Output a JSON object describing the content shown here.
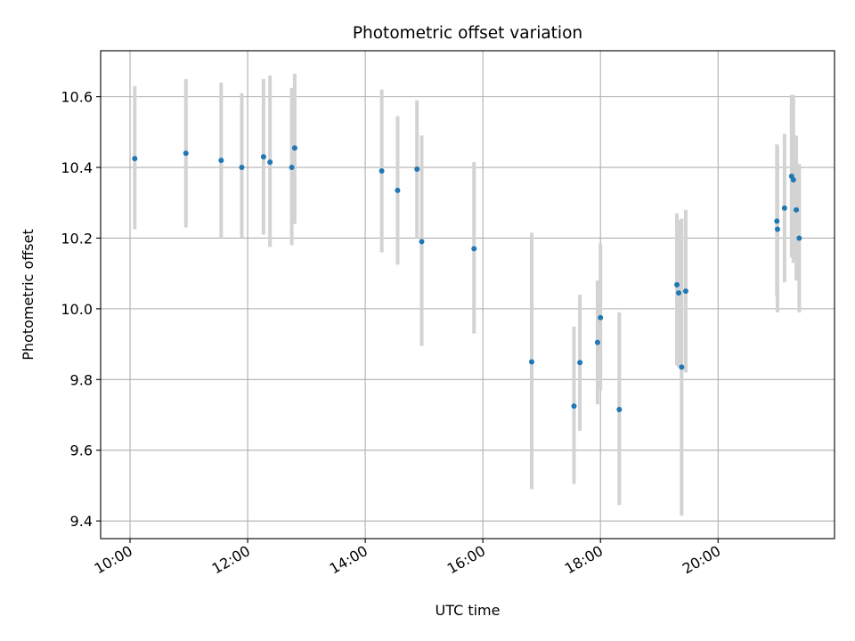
{
  "chart_data": {
    "type": "scatter",
    "title": "Photometric offset variation",
    "xlabel": "UTC time",
    "ylabel": "Photometric offset",
    "x_unit": "hours UTC",
    "xlim": [
      9.5,
      21.98
    ],
    "ylim": [
      9.35,
      10.73
    ],
    "x_ticks": [
      {
        "value": 10,
        "label": "10:00"
      },
      {
        "value": 12,
        "label": "12:00"
      },
      {
        "value": 14,
        "label": "14:00"
      },
      {
        "value": 16,
        "label": "16:00"
      },
      {
        "value": 18,
        "label": "18:00"
      },
      {
        "value": 20,
        "label": "20:00"
      }
    ],
    "y_ticks": [
      {
        "value": 9.4,
        "label": "9.4"
      },
      {
        "value": 9.6,
        "label": "9.6"
      },
      {
        "value": 9.8,
        "label": "9.8"
      },
      {
        "value": 10.0,
        "label": "10.0"
      },
      {
        "value": 10.2,
        "label": "10.2"
      },
      {
        "value": 10.4,
        "label": "10.4"
      },
      {
        "value": 10.6,
        "label": "10.6"
      }
    ],
    "grid": true,
    "point_color": "#1f77b4",
    "error_bar_color": "#d3d3d3",
    "points": [
      {
        "x": 10.08,
        "y": 10.425,
        "low": 10.225,
        "high": 10.63
      },
      {
        "x": 10.95,
        "y": 10.44,
        "low": 10.23,
        "high": 10.65
      },
      {
        "x": 11.55,
        "y": 10.42,
        "low": 10.2,
        "high": 10.64
      },
      {
        "x": 11.9,
        "y": 10.4,
        "low": 10.2,
        "high": 10.61
      },
      {
        "x": 12.27,
        "y": 10.43,
        "low": 10.21,
        "high": 10.65
      },
      {
        "x": 12.38,
        "y": 10.415,
        "low": 10.175,
        "high": 10.66
      },
      {
        "x": 12.75,
        "y": 10.4,
        "low": 10.18,
        "high": 10.625
      },
      {
        "x": 12.8,
        "y": 10.455,
        "low": 10.24,
        "high": 10.665
      },
      {
        "x": 14.28,
        "y": 10.39,
        "low": 10.16,
        "high": 10.62
      },
      {
        "x": 14.55,
        "y": 10.335,
        "low": 10.125,
        "high": 10.545
      },
      {
        "x": 14.88,
        "y": 10.395,
        "low": 10.2,
        "high": 10.59
      },
      {
        "x": 14.96,
        "y": 10.19,
        "low": 9.895,
        "high": 10.49
      },
      {
        "x": 15.85,
        "y": 10.17,
        "low": 9.93,
        "high": 10.415
      },
      {
        "x": 16.83,
        "y": 9.85,
        "low": 9.49,
        "high": 10.215
      },
      {
        "x": 17.55,
        "y": 9.725,
        "low": 9.505,
        "high": 9.95
      },
      {
        "x": 17.65,
        "y": 9.848,
        "low": 9.655,
        "high": 10.04
      },
      {
        "x": 17.95,
        "y": 9.905,
        "low": 9.73,
        "high": 10.08
      },
      {
        "x": 18.0,
        "y": 9.975,
        "low": 9.77,
        "high": 10.185
      },
      {
        "x": 18.32,
        "y": 9.715,
        "low": 9.445,
        "high": 9.99
      },
      {
        "x": 19.3,
        "y": 10.068,
        "low": 9.84,
        "high": 10.27
      },
      {
        "x": 19.33,
        "y": 10.045,
        "low": 9.835,
        "high": 10.25
      },
      {
        "x": 19.38,
        "y": 9.835,
        "low": 9.415,
        "high": 10.255
      },
      {
        "x": 19.45,
        "y": 10.05,
        "low": 9.82,
        "high": 10.28
      },
      {
        "x": 21.0,
        "y": 10.248,
        "low": 10.035,
        "high": 10.465
      },
      {
        "x": 21.01,
        "y": 10.225,
        "low": 9.99,
        "high": 10.46
      },
      {
        "x": 21.13,
        "y": 10.285,
        "low": 10.075,
        "high": 10.495
      },
      {
        "x": 21.25,
        "y": 10.375,
        "low": 10.145,
        "high": 10.605
      },
      {
        "x": 21.28,
        "y": 10.365,
        "low": 10.13,
        "high": 10.605
      },
      {
        "x": 21.33,
        "y": 10.28,
        "low": 10.08,
        "high": 10.49
      },
      {
        "x": 21.38,
        "y": 10.2,
        "low": 9.99,
        "high": 10.41
      }
    ]
  }
}
